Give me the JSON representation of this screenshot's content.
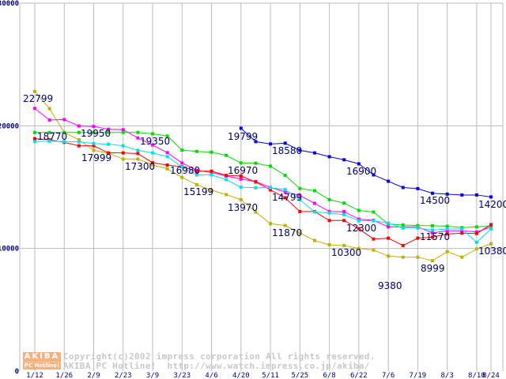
{
  "chart_data": {
    "type": "line",
    "title": "",
    "xlabel": "",
    "ylabel": "",
    "ylim": [
      0,
      30000
    ],
    "yticks": [
      "0",
      "10000",
      "20000",
      "30000"
    ],
    "x_tick_labels": [
      "1/12",
      "1/26",
      "2/9",
      "2/23",
      "3/9",
      "3/23",
      "4/6",
      "4/20",
      "5/11",
      "5/25",
      "6/8",
      "6/22",
      "7/6",
      "7/19",
      "8/3",
      "8/10",
      "8/24"
    ],
    "grid": true,
    "series": [
      {
        "name": "gold",
        "color": "#c0b000",
        "start": 0,
        "values": [
          22799,
          21400,
          19460,
          18860,
          18000,
          17760,
          17290,
          17290,
          16820,
          16490,
          15790,
          15199,
          14750,
          14390,
          13970,
          12970,
          12020,
          11870,
          11250,
          10650,
          10300,
          10240,
          10000,
          9870,
          9380,
          9290,
          9290,
          8999,
          9740,
          9290,
          9960,
          10380
        ]
      },
      {
        "name": "magenta",
        "color": "#ff00ff",
        "start": 0,
        "values": [
          21420,
          20470,
          20510,
          19980,
          19950,
          19720,
          19680,
          19010,
          18430,
          17810,
          16970,
          16370,
          16190,
          15910,
          15660,
          15460,
          14970,
          14620,
          14320,
          13680,
          13010,
          13000,
          12390,
          12300,
          11760,
          11760,
          11760,
          11270,
          11440,
          11440,
          11350,
          11740
        ]
      },
      {
        "name": "green",
        "color": "#00dd00",
        "start": 0,
        "values": [
          19460,
          19460,
          19460,
          19460,
          19460,
          19460,
          19460,
          19460,
          19350,
          19160,
          18020,
          17910,
          17850,
          17590,
          16970,
          16950,
          16710,
          15960,
          14890,
          14710,
          13980,
          13700,
          13100,
          12970,
          12000,
          11910,
          11870,
          11850,
          11810,
          11700,
          11760,
          11830
        ]
      },
      {
        "name": "red",
        "color": "#ff0000",
        "start": 0,
        "values": [
          18950,
          18860,
          18650,
          18370,
          18370,
          17790,
          17790,
          17740,
          16990,
          16800,
          16670,
          16300,
          16300,
          15960,
          15910,
          15420,
          14770,
          14130,
          13010,
          13010,
          12280,
          12280,
          11610,
          10770,
          10840,
          10240,
          10840,
          10920,
          11180,
          11250,
          11220,
          11940
        ]
      },
      {
        "name": "cyan",
        "color": "#00e0f0",
        "start": 0,
        "values": [
          18710,
          18750,
          18710,
          18690,
          18560,
          18500,
          18370,
          18000,
          17790,
          17480,
          16650,
          16000,
          16000,
          15610,
          14990,
          14950,
          14950,
          14799,
          13980,
          12970,
          12900,
          12750,
          12260,
          12260,
          12060,
          11660,
          11660,
          11500,
          11590,
          11590,
          10500,
          11590
        ]
      },
      {
        "name": "blue",
        "color": "#0000ee",
        "start": 14,
        "values": [
          19799,
          18710,
          18520,
          18580,
          18000,
          17790,
          17480,
          17230,
          16900,
          16000,
          15480,
          14970,
          14880,
          14500,
          14430,
          14360,
          14360,
          14200
        ]
      }
    ],
    "annotations": [
      {
        "text": "22799"
      },
      {
        "text": "18770"
      },
      {
        "text": "19950"
      },
      {
        "text": "17999"
      },
      {
        "text": "19350"
      },
      {
        "text": "17300"
      },
      {
        "text": "16980"
      },
      {
        "text": "15199"
      },
      {
        "text": "16970"
      },
      {
        "text": "13970"
      },
      {
        "text": "19799"
      },
      {
        "text": "18580"
      },
      {
        "text": "14799"
      },
      {
        "text": "11870"
      },
      {
        "text": "16900"
      },
      {
        "text": "12300"
      },
      {
        "text": "10300"
      },
      {
        "text": "9380"
      },
      {
        "text": "14500"
      },
      {
        "text": "11570"
      },
      {
        "text": "8999"
      },
      {
        "text": "14200"
      },
      {
        "text": "10380"
      }
    ]
  },
  "watermark": {
    "logo_top": "AKIBA",
    "logo_bottom": "PC Hotline!",
    "copyright": "Copyright(c)2002 impress corporation All rights reserved.",
    "site": "AKIBA PC Hotline!  http://www.watch.impress.co.jp/akiba/"
  }
}
